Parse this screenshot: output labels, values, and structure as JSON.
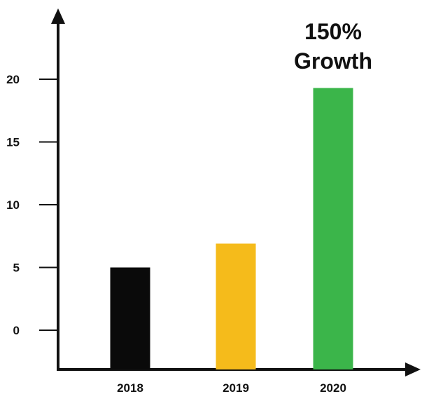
{
  "chart_data": {
    "type": "bar",
    "title": "",
    "xlabel": "",
    "ylabel": "",
    "categories": [
      "2018",
      "2019",
      "2020"
    ],
    "values": [
      5,
      6.9,
      19.3
    ],
    "bar_colors": [
      "#0a0a0a",
      "#f5bb1b",
      "#3bb54a"
    ],
    "ylim": [
      0,
      20
    ],
    "yticks": [
      0,
      5,
      10,
      15,
      20
    ],
    "ytick_labels": [
      "0",
      "5",
      "10",
      "15",
      "20"
    ],
    "grid": false,
    "legend": "none",
    "annotation": {
      "line1": "150%",
      "line2": "Growth",
      "category": "2020"
    }
  }
}
